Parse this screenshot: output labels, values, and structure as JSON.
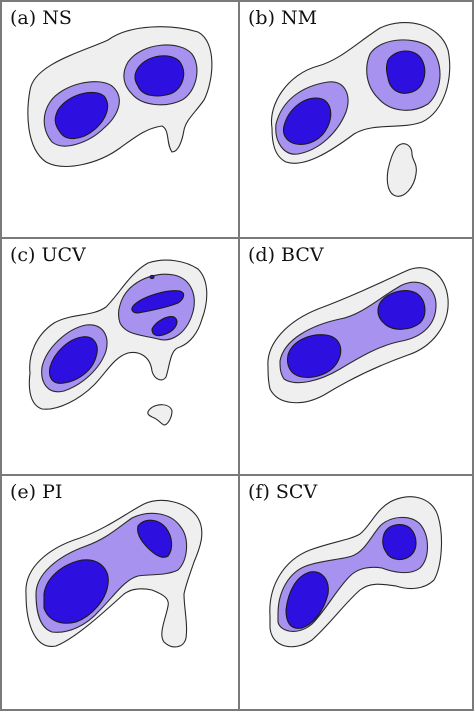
{
  "colors": {
    "outer_level": "#efefef",
    "middle_level": "#a792ef",
    "inner_level": "#2d10e0",
    "contour_line": "#2a2a2a",
    "panel_border": "#7a7a7a"
  },
  "panels": [
    {
      "id": "a",
      "label": "(a) NS"
    },
    {
      "id": "b",
      "label": "(b) NM"
    },
    {
      "id": "c",
      "label": "(c) UCV"
    },
    {
      "id": "d",
      "label": "(d) BCV"
    },
    {
      "id": "e",
      "label": "(e) PI"
    },
    {
      "id": "f",
      "label": "(f) SCV"
    }
  ]
}
